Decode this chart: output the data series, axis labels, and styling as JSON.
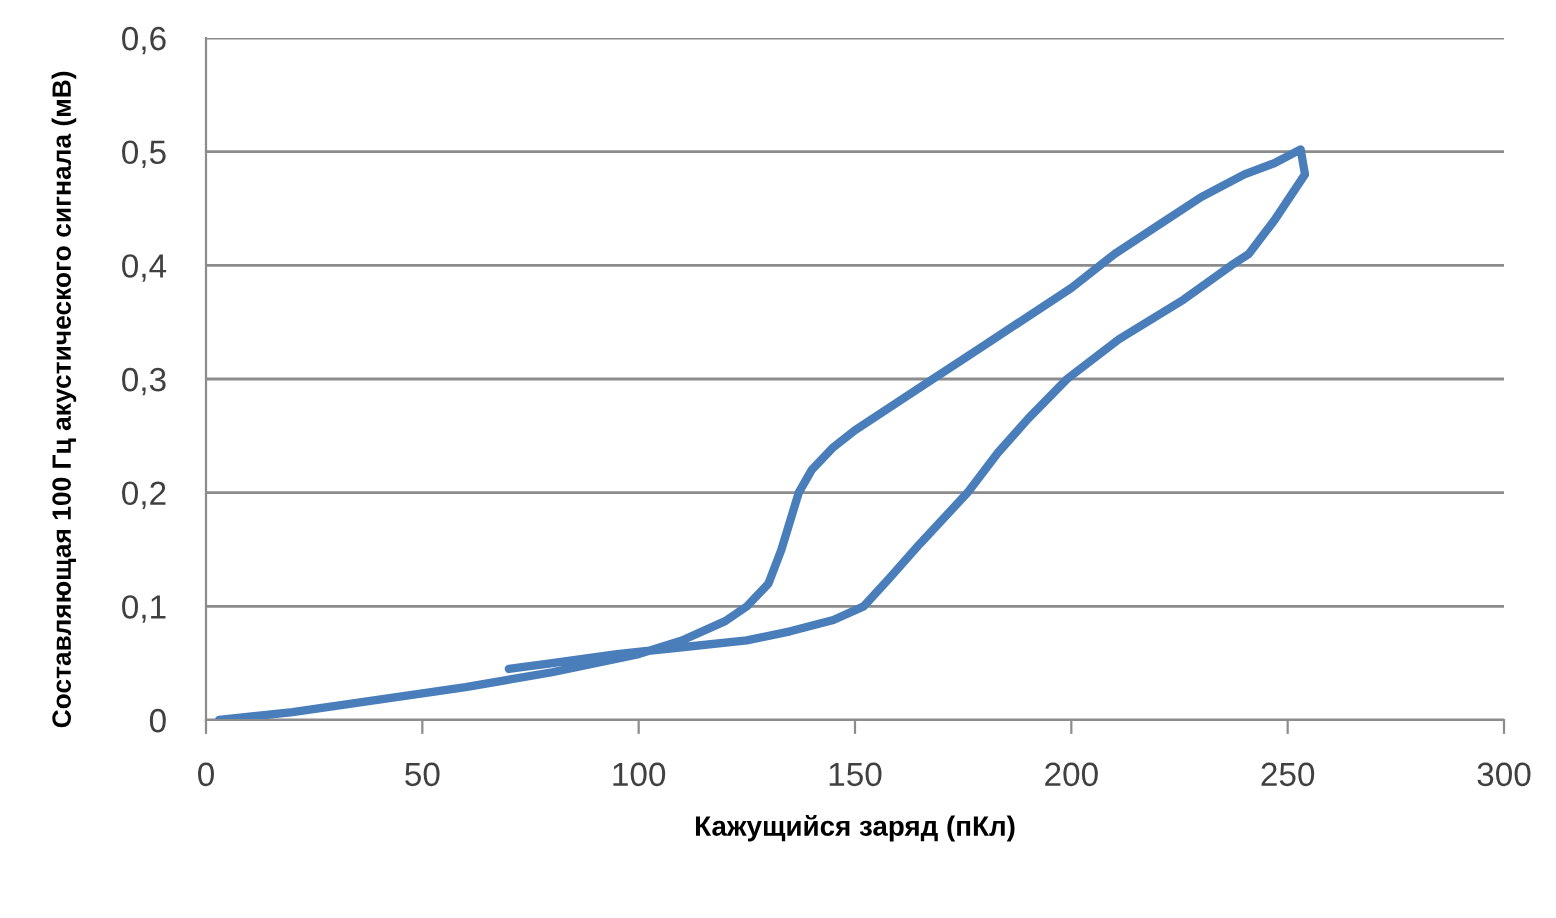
{
  "chart_data": {
    "type": "line",
    "xlabel": "Кажущийся заряд (пКл)",
    "ylabel": "Составляющая 100 Гц акустического сигнала (мВ)",
    "series": [
      {
        "color": "#4a7ebb",
        "x": [
          3,
          20,
          40,
          60,
          80,
          100,
          110,
          120,
          125,
          130,
          133,
          137,
          140,
          145,
          150,
          160,
          168,
          180,
          190,
          200,
          210,
          220,
          230,
          240,
          247,
          253,
          254,
          247,
          241,
          237,
          226,
          211,
          199,
          190,
          183,
          176,
          165,
          158,
          152,
          145,
          135,
          125,
          110,
          95,
          80,
          70
        ],
        "values": [
          0,
          0.007,
          0.018,
          0.029,
          0.042,
          0.058,
          0.07,
          0.087,
          0.1,
          0.12,
          0.15,
          0.2,
          0.22,
          0.24,
          0.255,
          0.28,
          0.3,
          0.33,
          0.355,
          0.38,
          0.41,
          0.435,
          0.46,
          0.48,
          0.49,
          0.502,
          0.48,
          0.44,
          0.41,
          0.4,
          0.37,
          0.335,
          0.3,
          0.265,
          0.235,
          0.2,
          0.155,
          0.125,
          0.1,
          0.088,
          0.078,
          0.07,
          0.064,
          0.058,
          0.05,
          0.045
        ]
      }
    ],
    "xlim": [
      0,
      300
    ],
    "xticks": [
      0,
      50,
      100,
      150,
      200,
      250,
      300
    ],
    "ylim": [
      0,
      0.6
    ],
    "yticks": [
      {
        "value": 0,
        "label": "0"
      },
      {
        "value": 0.1,
        "label": "0,1"
      },
      {
        "value": 0.2,
        "label": "0,2"
      },
      {
        "value": 0.3,
        "label": "0,3"
      },
      {
        "value": 0.4,
        "label": "0,4"
      },
      {
        "value": 0.5,
        "label": "0,5"
      },
      {
        "value": 0.6,
        "label": "0,6"
      }
    ],
    "grid": "y",
    "marker": "none",
    "line_style": "solid"
  }
}
